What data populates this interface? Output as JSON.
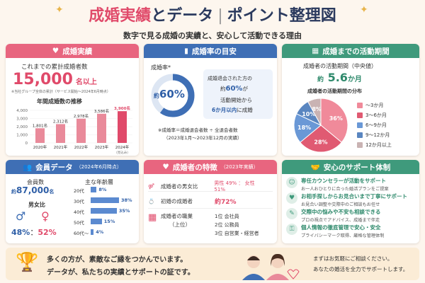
{
  "header": {
    "title_a": "成婚実績",
    "title_b": "とデータ",
    "title_c": "ポイント整理図",
    "subtitle": "数字で見る成婚の実績と、安心して活動できる理由"
  },
  "results": {
    "header": "成婚実績",
    "cumulative_label": "これまでの累計成婚者数",
    "cumulative_value": "15,000",
    "cumulative_unit": "名以上",
    "note": "※当社グループ全体の累計（サービス開始〜2024年6月時点）",
    "trend_title": "年間成婚数の推移",
    "chart_data": {
      "type": "bar",
      "categories": [
        "2020年",
        "2021年",
        "2022年",
        "2023年",
        "2024年"
      ],
      "category_notes": [
        "",
        "",
        "",
        "",
        "（見込み）"
      ],
      "values": [
        1801,
        2312,
        2978,
        3586,
        3900
      ],
      "value_labels": [
        "1,801名",
        "2,312名",
        "2,978名",
        "3,586名",
        "3,900名"
      ],
      "ylim": [
        0,
        4000
      ],
      "yticks": [
        "4,000",
        "3,000",
        "2,000",
        "1,000",
        "0"
      ],
      "highlight_index": 4,
      "colors": {
        "bar": "#e98a9a",
        "highlight": "#e04a6a"
      }
    }
  },
  "rate": {
    "header": "成婚率の目安",
    "rate_label": "成婚率*",
    "rate_prefix": "約",
    "rate_value": "60%",
    "rate_fraction": 0.6,
    "desc_1": "成婚退会された方の",
    "desc_2a": "約",
    "desc_2b": "60%",
    "desc_2c": "が",
    "desc_3": "活動開始から",
    "desc_4a": "6か月以内",
    "desc_4b": "に成婚",
    "footnote_1": "※成婚率＝成婚退会者数 ÷ 全退会者数",
    "footnote_2": "（2023年1月〜2023年12月の実績）"
  },
  "period": {
    "header": "成婚までの活動期間",
    "median_label": "成婚者の活動期間（中央値）",
    "median_prefix": "約",
    "median_value": "5.6",
    "median_unit": "か月",
    "dist_title": "成婚者の活動期間の分布",
    "pie": {
      "type": "pie",
      "values": [
        36,
        28,
        18,
        10,
        8
      ],
      "labels": [
        "36%",
        "28%",
        "18%",
        "10%",
        "8%"
      ],
      "legend": [
        "〜3か月",
        "3〜6か月",
        "6〜9か月",
        "9〜12か月",
        "12か月以上"
      ],
      "colors": [
        "#f08a9a",
        "#e05a72",
        "#6a98d6",
        "#5a86c0",
        "#c9b3b3"
      ]
    }
  },
  "members": {
    "header": "会員データ",
    "header_note": "（2024年6月時点）",
    "count_label": "会員数",
    "count_prefix": "約",
    "count_value": "87,000",
    "count_unit": "名",
    "ratio_label": "男女比",
    "male_pct": "48%",
    "female_pct": "52%",
    "ratio_sep": "：",
    "age_title": "主な年齢層",
    "ages": [
      {
        "label": "20代",
        "pct": "8%",
        "value": 8
      },
      {
        "label": "30代",
        "pct": "38%",
        "value": 38
      },
      {
        "label": "40代",
        "pct": "35%",
        "value": 35
      },
      {
        "label": "50代",
        "pct": "15%",
        "value": 15
      },
      {
        "label": "60代〜",
        "pct": "4%",
        "value": 4
      }
    ]
  },
  "features": {
    "header": "成婚者の特徴",
    "header_note": "（2023年実績）",
    "gender_label": "成婚者の男女比",
    "gender_value": "男性 49% ： 女性 51%",
    "first_label": "初婚の成婚者",
    "first_value": "約72%",
    "job_label": "成婚者の職業",
    "job_label_2": "（上位）",
    "jobs": [
      "1位 会社員",
      "2位 公務員",
      "3位 自営業・経営者"
    ]
  },
  "support": {
    "header": "安心のサポート体制",
    "items": [
      {
        "title": "専任カウンセラーが活動をサポート",
        "desc": "お一人おひとりに合った婚活プランをご提案",
        "icon": "counselor-icon"
      },
      {
        "title": "お相手探しからお見合いまで丁寧にサポート",
        "desc": "お見合い調整や交際中のご相談もお任せ",
        "icon": "heart-hands-icon"
      },
      {
        "title": "交際中の悩みや不安も相談できる",
        "desc": "プロの視点でアドバイス、成婚まで伴走",
        "icon": "chat-icon"
      },
      {
        "title": "個人情報の徹底管理で安心・安全",
        "desc": "プライバシーマーク取得、厳格な管理体制",
        "icon": "lock-icon"
      }
    ]
  },
  "footer": {
    "line_1": "多くの方が、素敵なご縁をつかんでいます。",
    "line_2": "データが、私たちの実績とサポートの証です。",
    "cta_1": "まずはお気軽にご相談ください。",
    "cta_2": "あなたの婚活を全力でサポートします。"
  }
}
